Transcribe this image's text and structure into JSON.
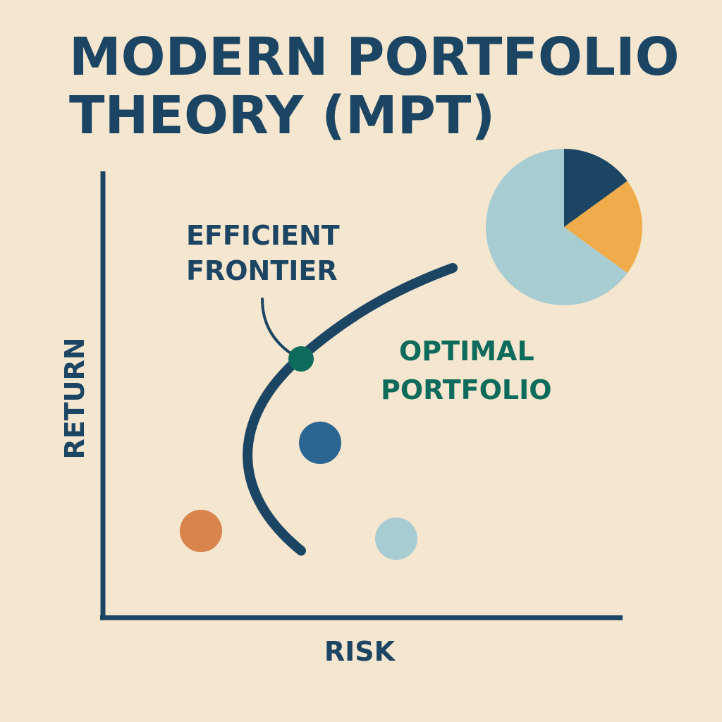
{
  "title": {
    "line1": "MODERN PORTFOLIO",
    "line2": "THEORY (MPT)"
  },
  "axes": {
    "x_label": "RISK",
    "y_label": "RETURN"
  },
  "annotations": {
    "efficient_frontier": {
      "line1": "EFFICIENT",
      "line2": "FRONTIER"
    },
    "optimal_portfolio": {
      "line1": "OPTIMAL",
      "line2": "PORTFOLIO"
    }
  },
  "colors": {
    "background": "#f5e6cf",
    "ink": "#1b4563",
    "teal": "#0d6b5c",
    "orange": "#d9834d",
    "blue": "#2b6693",
    "light_blue": "#a7ccd2",
    "navy": "#1b4563",
    "amber": "#f0ac4a"
  },
  "pie": {
    "slices": [
      {
        "color_key": "navy",
        "percent": 15
      },
      {
        "color_key": "amber",
        "percent": 20
      },
      {
        "color_key": "light_blue",
        "percent": 65
      }
    ]
  },
  "portfolio_dots": [
    {
      "name": "optimal-portfolio-dot",
      "color_key": "teal"
    },
    {
      "name": "portfolio-dot-blue",
      "color_key": "blue"
    },
    {
      "name": "portfolio-dot-orange",
      "color_key": "orange"
    },
    {
      "name": "portfolio-dot-light-blue",
      "color_key": "light_blue"
    }
  ]
}
